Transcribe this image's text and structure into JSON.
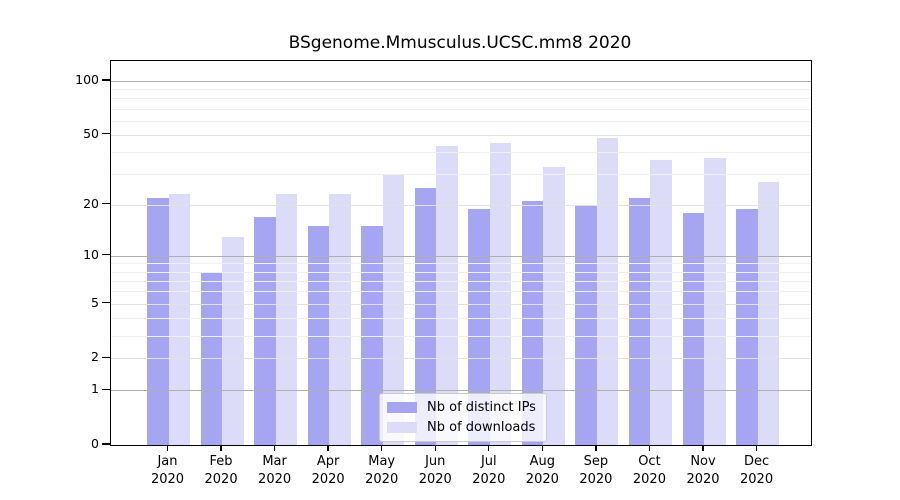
{
  "title": "BSgenome.Mmusculus.UCSC.mm8 2020",
  "chart_data": {
    "type": "bar",
    "title": "BSgenome.Mmusculus.UCSC.mm8 2020",
    "scale": "log10(value+1)",
    "categories": [
      "Jan",
      "Feb",
      "Mar",
      "Apr",
      "May",
      "Jun",
      "Jul",
      "Aug",
      "Sep",
      "Oct",
      "Nov",
      "Dec"
    ],
    "year_label": "2020",
    "series": [
      {
        "name": "Nb of distinct IPs",
        "color": "#a5a5f2",
        "values": [
          22,
          8,
          17,
          15,
          15,
          25,
          19,
          21,
          20,
          22,
          18,
          19
        ]
      },
      {
        "name": "Nb of downloads",
        "color": "#dcdcf9",
        "values": [
          23,
          13,
          23,
          23,
          30,
          43,
          45,
          33,
          48,
          36,
          37,
          27
        ]
      }
    ],
    "y_axis": {
      "tick_labels": [
        100,
        50,
        20,
        10,
        5,
        2,
        1,
        0
      ],
      "decade_gridlines": [
        1,
        10,
        100
      ],
      "labeled_gridlines": [
        2,
        5,
        20,
        50
      ],
      "minor_gridlines": [
        3,
        4,
        6,
        7,
        8,
        9,
        30,
        40,
        60,
        70,
        80,
        90
      ],
      "ylim": [
        0,
        129
      ]
    },
    "legend_entries": [
      "Nb of distinct IPs",
      "Nb of downloads"
    ],
    "legend_position": "bottom-center",
    "grid": "on"
  },
  "colors": {
    "bar_ips": "#a5a5f2",
    "bar_downloads": "#dcdcf9",
    "grid_decade": "#b0b0b0",
    "grid_labeled": "#e2e2e2",
    "grid_minor": "#f0f0f0",
    "axis": "#000000",
    "legend_border": "#cbcbcb"
  }
}
